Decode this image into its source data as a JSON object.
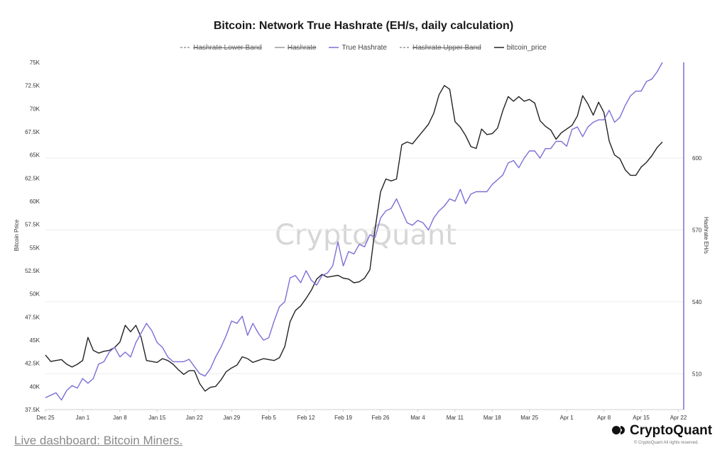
{
  "page": {
    "link_text": "Live dashboard: Bitcoin Miners.",
    "brand": "CryptoQuant",
    "copyright": "© CryptoQuant All rights reserved.",
    "watermark": "CryptoQuant"
  },
  "chart_data": {
    "type": "line",
    "title": "Bitcoin: Network True Hashrate (EH/s, daily calculation)",
    "ylabel_left": "Bitcoin Price",
    "ylabel_right": "Hashrate EH/s",
    "grid": "horizontal",
    "legend_position": "top-center",
    "legend": [
      {
        "name": "Hashrate Lower Band",
        "style": "dashed",
        "color": "#999999",
        "visible": false
      },
      {
        "name": "Hashrate",
        "style": "solid",
        "color": "#999999",
        "visible": false
      },
      {
        "name": "True Hashrate",
        "style": "solid",
        "color": "#7b6fd6",
        "visible": true
      },
      {
        "name": "Hashrate Upper Band",
        "style": "dashed",
        "color": "#999999",
        "visible": false
      },
      {
        "name": "bitcoin_price",
        "style": "solid",
        "color": "#222222",
        "visible": true
      }
    ],
    "x_ticks": [
      "Dec 25",
      "Jan 1",
      "Jan 8",
      "Jan 15",
      "Jan 22",
      "Jan 29",
      "Feb 5",
      "Feb 12",
      "Feb 19",
      "Feb 26",
      "Mar 4",
      "Mar 11",
      "Mar 18",
      "Mar 25",
      "Apr 1",
      "Apr 8",
      "Apr 15",
      "Apr 22"
    ],
    "x_range": [
      "2023-12-25",
      "2024-04-23"
    ],
    "y_left_ticks": [
      "37.5K",
      "40K",
      "42.5K",
      "45K",
      "47.5K",
      "50K",
      "52.5K",
      "55K",
      "57.5K",
      "60K",
      "62.5K",
      "65K",
      "67.5K",
      "70K",
      "72.5K",
      "75K"
    ],
    "y_left_range": [
      37500,
      75000
    ],
    "y_right_ticks": [
      "510",
      "540",
      "570",
      "600"
    ],
    "y_right_range": [
      495,
      640
    ],
    "series": [
      {
        "name": "bitcoin_price",
        "axis": "left",
        "color": "#222222",
        "start_date": "2023-12-25",
        "values": [
          43400,
          42700,
          42800,
          42900,
          42400,
          42100,
          42400,
          42800,
          45300,
          43900,
          43600,
          43800,
          43900,
          44200,
          44800,
          46600,
          45900,
          46600,
          45300,
          42800,
          42700,
          42600,
          43000,
          42800,
          42400,
          41800,
          41300,
          41700,
          41700,
          40300,
          39500,
          39900,
          40000,
          40700,
          41600,
          42000,
          42300,
          43200,
          43000,
          42600,
          42800,
          43000,
          42900,
          42800,
          43100,
          44300,
          47000,
          48200,
          48700,
          49500,
          50400,
          51600,
          52100,
          51800,
          51900,
          52000,
          51700,
          51600,
          51200,
          51300,
          51700,
          52600,
          57100,
          61000,
          62400,
          62200,
          62400,
          66100,
          66400,
          66200,
          66900,
          67600,
          68300,
          69500,
          71500,
          72500,
          72100,
          68600,
          68000,
          67100,
          65900,
          65700,
          67800,
          67200,
          67300,
          67900,
          69800,
          71300,
          70800,
          71300,
          70800,
          71000,
          70600,
          68700,
          68100,
          67700,
          66700,
          67400,
          67800,
          68200,
          69200,
          71400,
          70500,
          69300,
          70700,
          69600,
          66500,
          65000,
          64600,
          63400,
          62800,
          62800,
          63700,
          64200,
          64900,
          65800,
          66400
        ],
        "start_index": 0
      },
      {
        "name": "True Hashrate",
        "axis": "right",
        "color": "#7b6fd6",
        "start_date": "2023-12-25",
        "values": [
          500,
          501,
          502,
          499,
          503,
          505,
          504,
          508,
          506,
          508,
          514,
          515,
          519,
          521,
          517,
          519,
          517,
          523,
          527,
          531,
          528,
          523,
          521,
          517,
          515,
          515,
          515,
          516,
          513,
          510,
          509,
          512,
          517,
          521,
          526,
          532,
          531,
          534,
          526,
          531,
          527,
          524,
          525,
          532,
          538,
          540,
          550,
          551,
          548,
          553,
          549,
          547,
          551,
          552,
          555,
          565,
          555,
          561,
          560,
          564,
          563,
          568,
          567,
          575,
          578,
          579,
          583,
          578,
          573,
          572,
          574,
          573,
          570,
          575,
          578,
          580,
          583,
          582,
          587,
          581,
          585,
          586,
          586,
          586,
          589,
          591,
          593,
          598,
          599,
          596,
          600,
          603,
          603,
          600,
          604,
          604,
          607,
          607,
          605,
          612,
          613,
          609,
          613,
          615,
          616,
          616,
          620,
          615,
          617,
          622,
          626,
          628,
          628,
          632,
          633,
          636,
          640
        ],
        "start_index": 0
      }
    ]
  }
}
